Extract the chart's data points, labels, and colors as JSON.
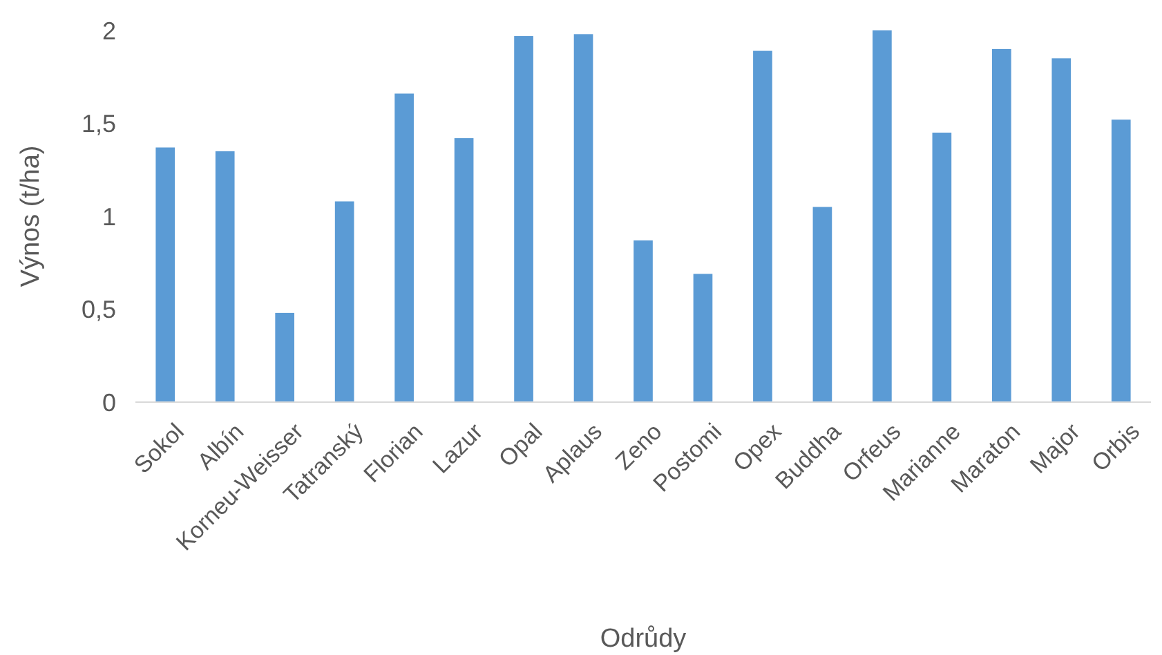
{
  "chart_data": {
    "type": "bar",
    "xlabel": "Odrůdy",
    "ylabel": "Výnos (t/ha)",
    "categories": [
      "Sokol",
      "Albín",
      "Korneu-Weisser",
      "Tatranský",
      "Florian",
      "Lazur",
      "Opal",
      "Aplaus",
      "Zeno",
      "Postomi",
      "Opex",
      "Buddha",
      "Orfeus",
      "Marianne",
      "Maraton",
      "Major",
      "Orbis"
    ],
    "values": [
      1.37,
      1.35,
      0.48,
      1.08,
      1.66,
      1.42,
      1.97,
      1.98,
      0.87,
      0.69,
      1.89,
      1.05,
      2.0,
      1.45,
      1.9,
      1.85,
      1.52
    ],
    "color": "#5b9bd5",
    "ylim": [
      0,
      2
    ],
    "yticks": [
      0,
      {
        "value": 0.5,
        "label": "0,5"
      },
      1,
      {
        "value": 1.5,
        "label": "1,5"
      },
      2
    ],
    "grid": false
  }
}
